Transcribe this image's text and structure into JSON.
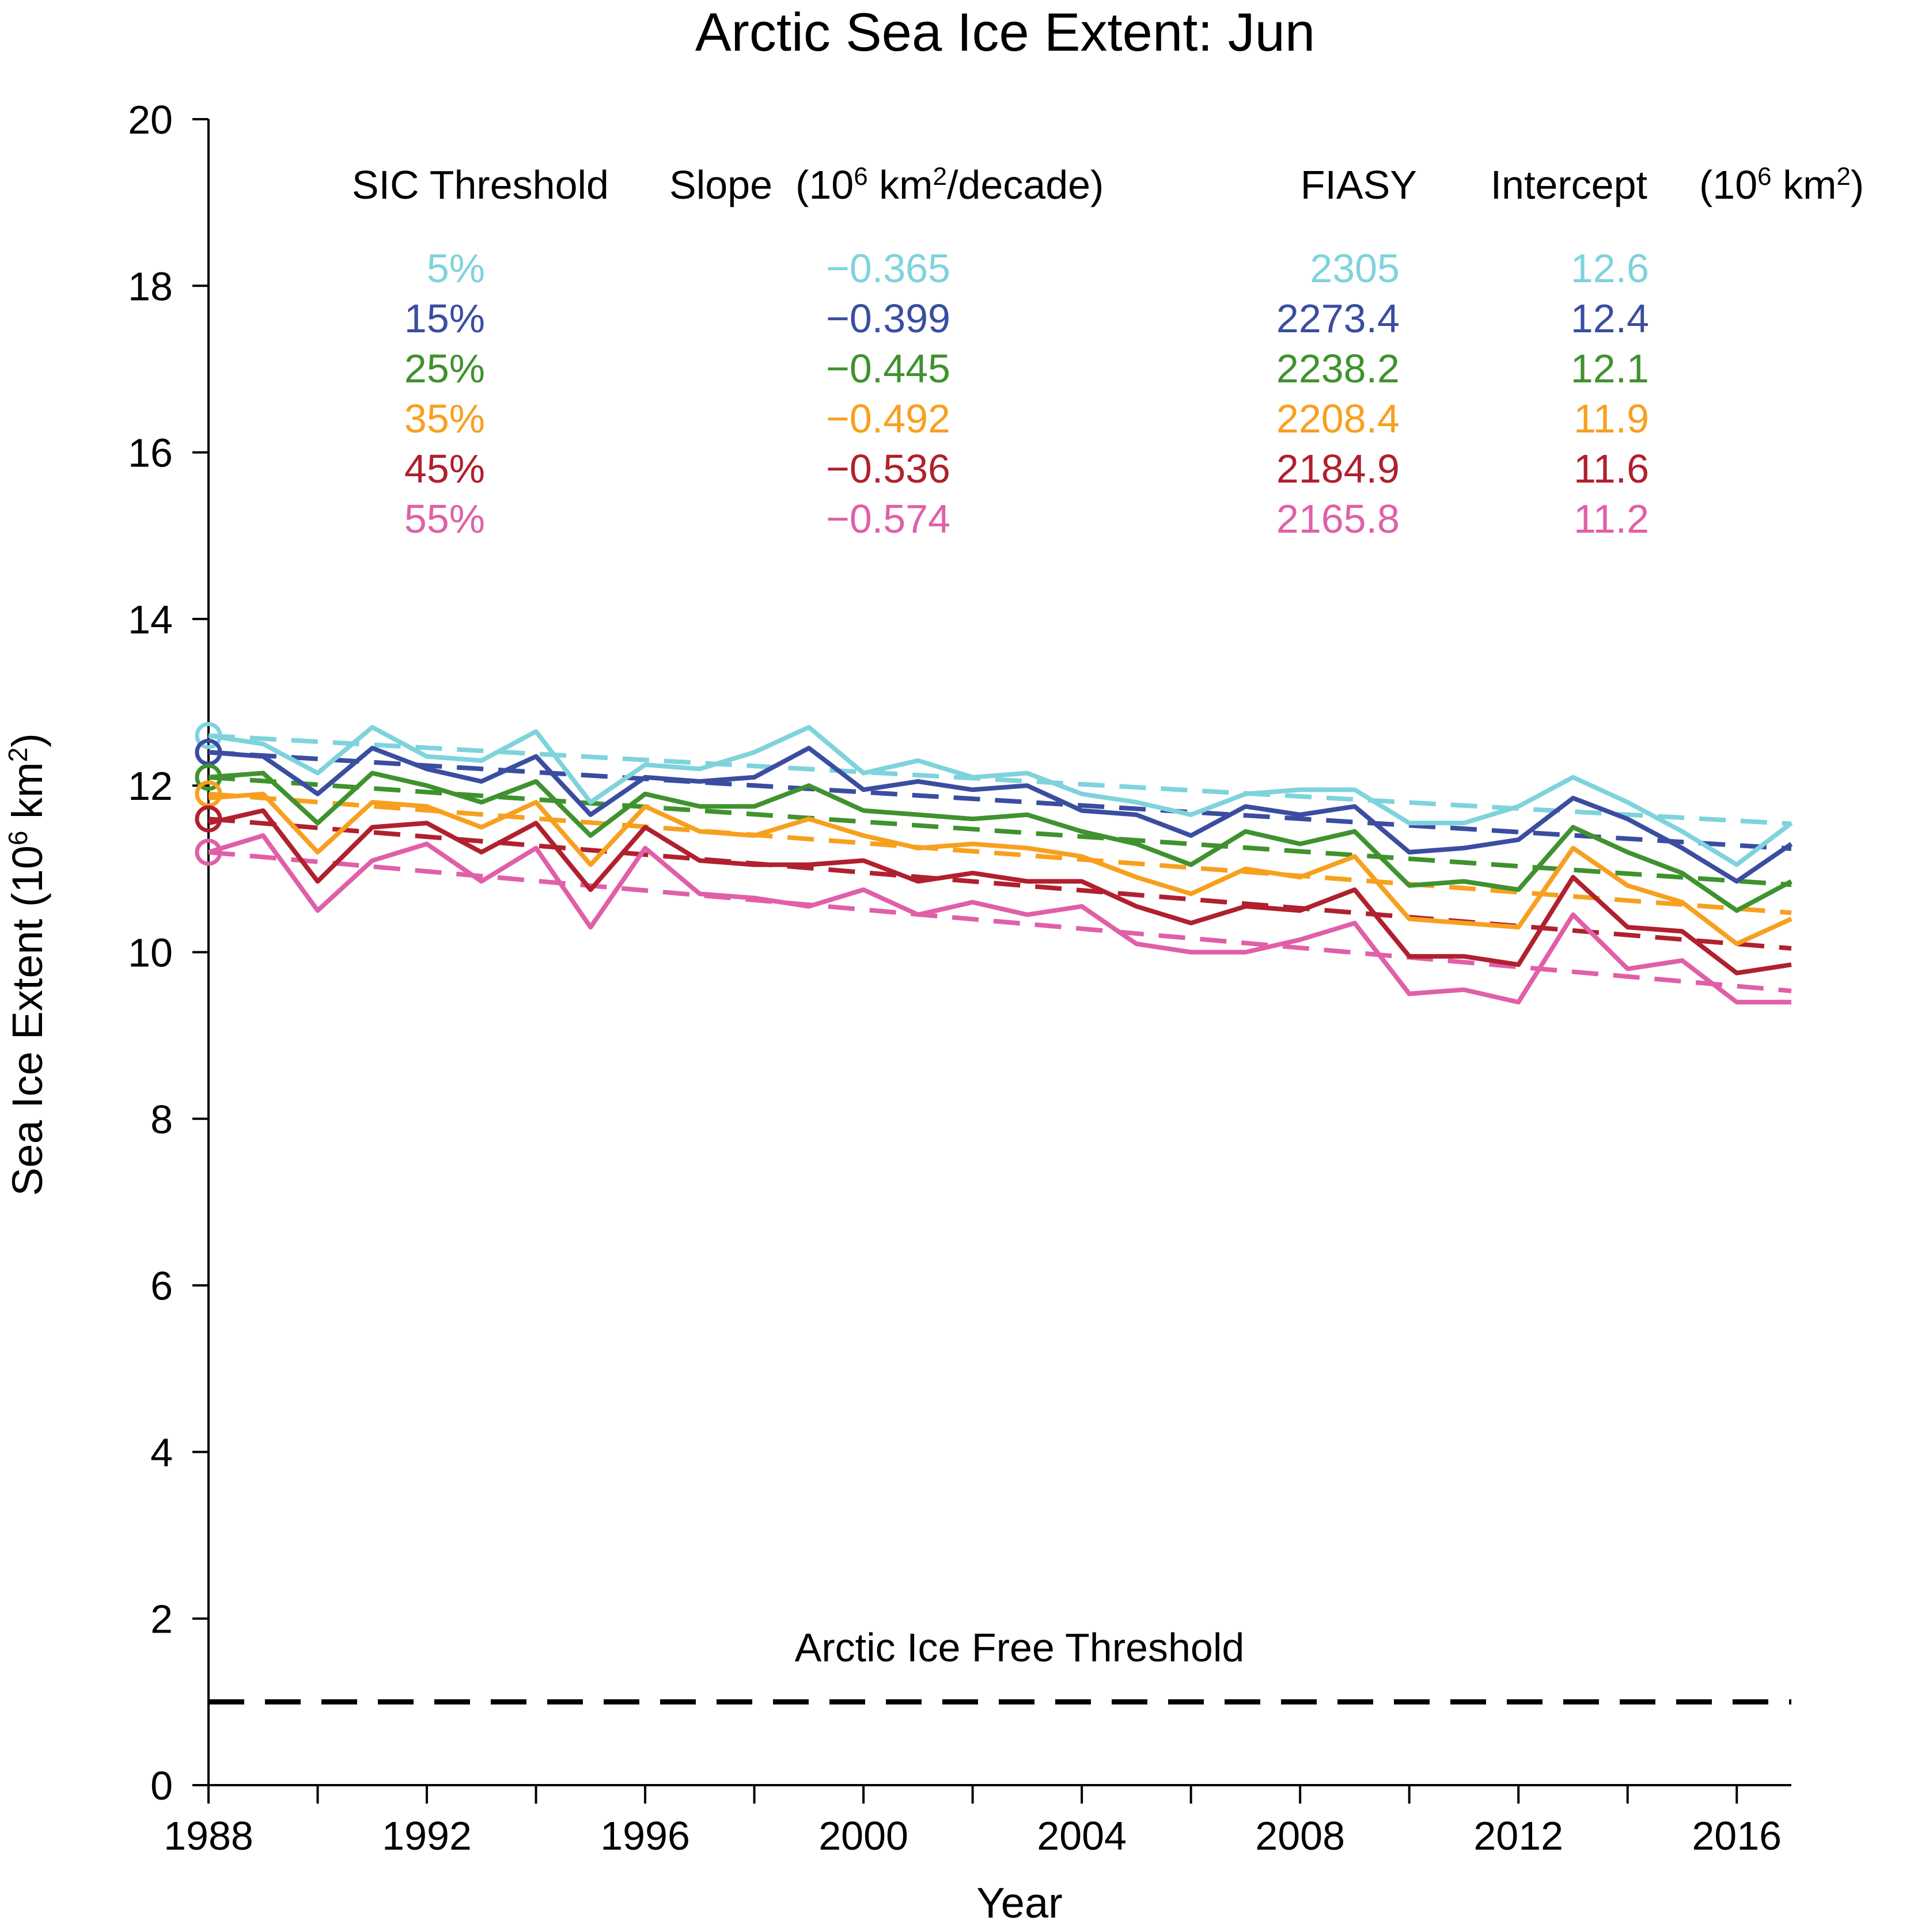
{
  "chart_data": {
    "type": "line",
    "title": "Arctic Sea Ice Extent: Jun",
    "xlabel": "Year",
    "ylabel_main": "Sea Ice Extent (10",
    "ylabel_exp": "6",
    "ylabel_tail": " km",
    "ylabel_exp2": "2",
    "ylabel_close": ")",
    "xlim": [
      1988,
      2017
    ],
    "ylim": [
      0,
      20
    ],
    "xticks_major": [
      1988,
      1992,
      1996,
      2000,
      2004,
      2008,
      2012,
      2016
    ],
    "xticks_minor": [
      1990,
      1994,
      1998,
      2002,
      2006,
      2010,
      2014
    ],
    "yticks": [
      0,
      2,
      4,
      6,
      8,
      10,
      12,
      14,
      16,
      18,
      20
    ],
    "x": [
      1988,
      1989,
      1990,
      1991,
      1992,
      1993,
      1994,
      1995,
      1996,
      1997,
      1998,
      1999,
      2000,
      2001,
      2002,
      2003,
      2004,
      2005,
      2006,
      2007,
      2008,
      2009,
      2010,
      2011,
      2012,
      2013,
      2014,
      2015,
      2016,
      2017
    ],
    "series": [
      {
        "name": "5%",
        "color": "#7ED3DC",
        "slope": -0.0365,
        "intercept": 12.6,
        "values": [
          12.6,
          12.5,
          12.15,
          12.7,
          12.35,
          12.3,
          12.65,
          11.8,
          12.25,
          12.2,
          12.4,
          12.7,
          12.15,
          12.3,
          12.1,
          12.15,
          11.9,
          11.8,
          11.65,
          11.9,
          11.95,
          11.95,
          11.55,
          11.55,
          11.75,
          12.1,
          11.8,
          11.45,
          11.05,
          11.55
        ]
      },
      {
        "name": "15%",
        "color": "#3A4DA0",
        "slope": -0.0399,
        "intercept": 12.4,
        "values": [
          12.4,
          12.35,
          11.9,
          12.45,
          12.2,
          12.05,
          12.35,
          11.65,
          12.1,
          12.05,
          12.1,
          12.45,
          11.95,
          12.05,
          11.95,
          12.0,
          11.7,
          11.65,
          11.4,
          11.75,
          11.65,
          11.75,
          11.2,
          11.25,
          11.35,
          11.85,
          11.6,
          11.25,
          10.85,
          11.3
        ]
      },
      {
        "name": "25%",
        "color": "#3F922E",
        "slope": -0.0445,
        "intercept": 12.1,
        "values": [
          12.1,
          12.15,
          11.55,
          12.15,
          12.0,
          11.8,
          12.05,
          11.4,
          11.9,
          11.75,
          11.75,
          12.0,
          11.7,
          11.65,
          11.6,
          11.65,
          11.45,
          11.3,
          11.05,
          11.45,
          11.3,
          11.45,
          10.8,
          10.85,
          10.75,
          11.5,
          11.2,
          10.95,
          10.5,
          10.85
        ]
      },
      {
        "name": "35%",
        "color": "#F7A01F",
        "slope": -0.0492,
        "intercept": 11.9,
        "values": [
          11.85,
          11.9,
          11.2,
          11.8,
          11.75,
          11.5,
          11.8,
          11.05,
          11.75,
          11.45,
          11.4,
          11.6,
          11.4,
          11.25,
          11.3,
          11.25,
          11.15,
          10.9,
          10.7,
          11.0,
          10.9,
          11.15,
          10.4,
          10.35,
          10.3,
          11.25,
          10.8,
          10.6,
          10.1,
          10.4
        ]
      },
      {
        "name": "45%",
        "color": "#B0202E",
        "slope": -0.0536,
        "intercept": 11.6,
        "values": [
          11.55,
          11.7,
          10.85,
          11.5,
          11.55,
          11.2,
          11.55,
          10.75,
          11.5,
          11.1,
          11.05,
          11.05,
          11.1,
          10.85,
          10.95,
          10.85,
          10.85,
          10.55,
          10.35,
          10.55,
          10.5,
          10.75,
          9.95,
          9.95,
          9.85,
          10.9,
          10.3,
          10.25,
          9.75,
          9.85
        ]
      },
      {
        "name": "55%",
        "color": "#E05FA8",
        "slope": -0.0574,
        "intercept": 11.2,
        "values": [
          11.2,
          11.4,
          10.5,
          11.1,
          11.3,
          10.85,
          11.25,
          10.3,
          11.25,
          10.7,
          10.65,
          10.55,
          10.75,
          10.45,
          10.6,
          10.45,
          10.55,
          10.1,
          10.0,
          10.0,
          10.15,
          10.35,
          9.5,
          9.55,
          9.4,
          10.45,
          9.8,
          9.9,
          9.4,
          9.4
        ]
      }
    ],
    "table": {
      "headers": [
        "SIC Threshold",
        "Slope",
        "(10",
        "6",
        " km",
        "2",
        "/decade)",
        "FIASY",
        "Intercept",
        "(10",
        "6",
        " km",
        "2",
        ")"
      ],
      "rows": [
        {
          "threshold": "5%",
          "slope": "−0.365",
          "fiasy": "2305",
          "intercept": "12.6"
        },
        {
          "threshold": "15%",
          "slope": "−0.399",
          "fiasy": "2273.4",
          "intercept": "12.4"
        },
        {
          "threshold": "25%",
          "slope": "−0.445",
          "fiasy": "2238.2",
          "intercept": "12.1"
        },
        {
          "threshold": "35%",
          "slope": "−0.492",
          "fiasy": "2208.4",
          "intercept": "11.9"
        },
        {
          "threshold": "45%",
          "slope": "−0.536",
          "fiasy": "2184.9",
          "intercept": "11.6"
        },
        {
          "threshold": "55%",
          "slope": "−0.574",
          "fiasy": "2165.8",
          "intercept": "11.2"
        }
      ]
    },
    "ice_free_threshold": {
      "label": "Arctic Ice Free Threshold",
      "value": 1,
      "color": "#000000"
    }
  }
}
